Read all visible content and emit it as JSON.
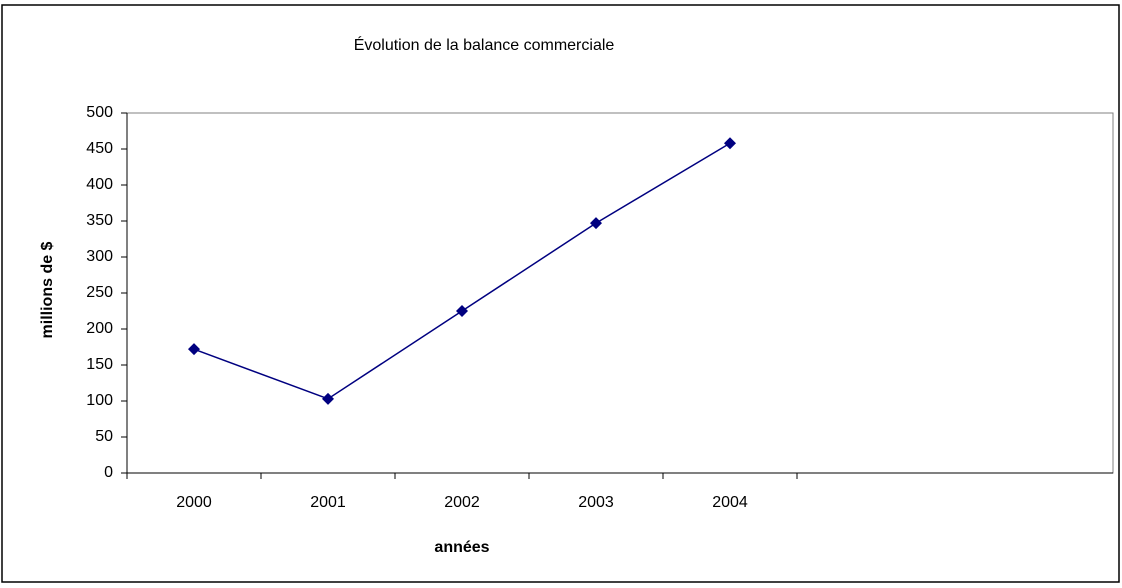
{
  "chart_data": {
    "type": "line",
    "title": "Évolution de la balance commerciale",
    "x_label": "années",
    "y_label": "millions de $",
    "categories": [
      "2000",
      "2001",
      "2002",
      "2003",
      "2004"
    ],
    "series": [
      {
        "name": "balance commerciale",
        "color": "#000080",
        "values": [
          172,
          103,
          225,
          347,
          458
        ]
      }
    ],
    "ylim": [
      0,
      500
    ],
    "yticks": [
      0,
      50,
      100,
      150,
      200,
      250,
      300,
      350,
      400,
      450,
      500
    ],
    "grid": false
  }
}
